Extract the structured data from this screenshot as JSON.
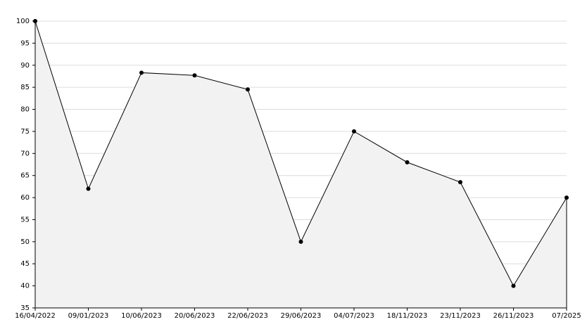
{
  "chart_data": {
    "type": "area",
    "categories": [
      "16/04/2022",
      "09/01/2023",
      "10/06/2023",
      "20/06/2023",
      "22/06/2023",
      "29/06/2023",
      "04/07/2023",
      "18/11/2023",
      "23/11/2023",
      "26/11/2023",
      "07/2025"
    ],
    "values": [
      100,
      62,
      88.3,
      87.7,
      84.5,
      50,
      75,
      68,
      63.5,
      40,
      60
    ],
    "color": "#000000",
    "fill": "#f2f2f2",
    "ylim": [
      35,
      100
    ],
    "yticks": [
      35,
      40,
      45,
      50,
      55,
      60,
      65,
      70,
      75,
      80,
      85,
      90,
      95,
      100
    ],
    "grid": true
  }
}
